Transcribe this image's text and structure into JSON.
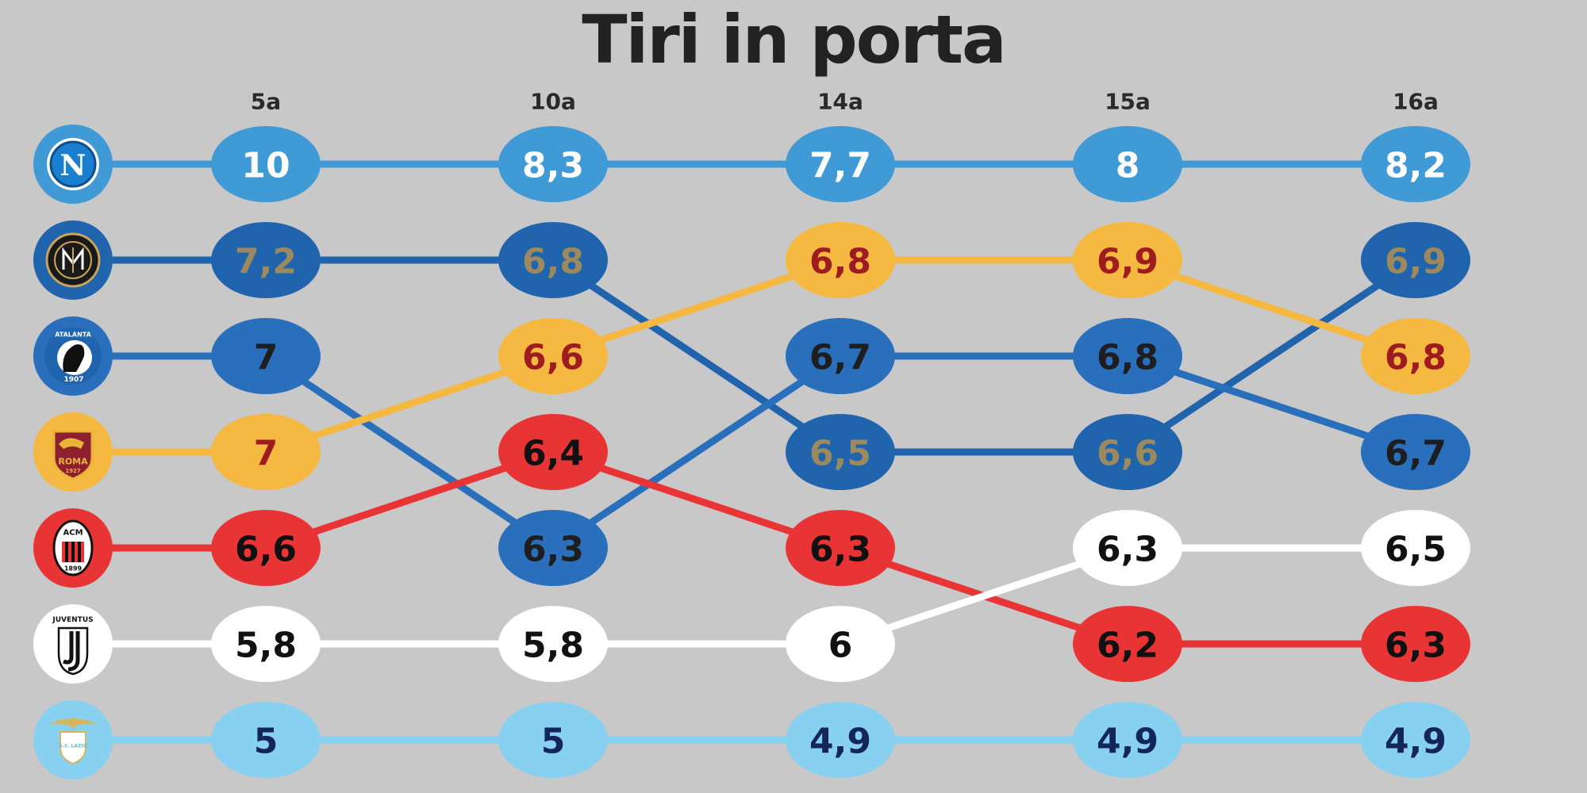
{
  "chart_data": {
    "type": "bump",
    "title": "Tiri in porta",
    "categories": [
      "5a",
      "10a",
      "14a",
      "15a",
      "16a"
    ],
    "series": [
      {
        "team_icon": "napoli-logo",
        "color": "#3f9ad6",
        "text_color": "#ffffff",
        "values": [
          10,
          8.3,
          7.7,
          8,
          8.2
        ],
        "labels": [
          "10",
          "8,3",
          "7,7",
          "8",
          "8,2"
        ],
        "ranks": [
          1,
          1,
          1,
          1,
          1
        ]
      },
      {
        "team_icon": "inter-logo",
        "color": "#1f64ad",
        "text_color": "#9c8a5e",
        "values": [
          7.2,
          6.8,
          6.5,
          6.6,
          6.9
        ],
        "labels": [
          "7,2",
          "6,8",
          "6,5",
          "6,6",
          "6,9"
        ],
        "ranks": [
          2,
          2,
          4,
          4,
          2
        ]
      },
      {
        "team_icon": "atalanta-logo",
        "color": "#2a6fbc",
        "text_color": "#1e1e1e",
        "values": [
          7,
          6.3,
          6.7,
          6.8,
          6.7
        ],
        "labels": [
          "7",
          "6,3",
          "6,7",
          "6,8",
          "6,7"
        ],
        "ranks": [
          3,
          5,
          3,
          3,
          4
        ]
      },
      {
        "team_icon": "roma-logo",
        "color": "#f5b841",
        "text_color": "#9e1b1f",
        "values": [
          7,
          6.6,
          6.8,
          6.9,
          6.8
        ],
        "labels": [
          "7",
          "6,6",
          "6,8",
          "6,9",
          "6,8"
        ],
        "ranks": [
          4,
          3,
          2,
          2,
          3
        ]
      },
      {
        "team_icon": "milan-logo",
        "color": "#e93435",
        "text_color": "#111111",
        "values": [
          6.6,
          6.4,
          6.3,
          6.2,
          6.3
        ],
        "labels": [
          "6,6",
          "6,4",
          "6,3",
          "6,2",
          "6,3"
        ],
        "ranks": [
          5,
          4,
          5,
          6,
          6
        ]
      },
      {
        "team_icon": "juventus-logo",
        "color": "#ffffff",
        "text_color": "#111111",
        "values": [
          5.8,
          5.8,
          6,
          6.3,
          6.5
        ],
        "labels": [
          "5,8",
          "5,8",
          "6",
          "6,3",
          "6,5"
        ],
        "ranks": [
          6,
          6,
          6,
          5,
          5
        ]
      },
      {
        "team_icon": "lazio-logo",
        "color": "#87d0ef",
        "text_color": "#14255c",
        "values": [
          5,
          5,
          4.9,
          4.9,
          4.9
        ],
        "labels": [
          "5",
          "5",
          "4,9",
          "4,9",
          "4,9"
        ],
        "ranks": [
          7,
          7,
          7,
          7,
          7
        ]
      }
    ]
  },
  "logo_text": {
    "napoli": "N",
    "atalanta_name": "ATALANTA",
    "atalanta_year": "1907",
    "roma_name": "ROMA",
    "roma_year": "1927",
    "milan_initials": "ACM",
    "milan_year": "1899",
    "juventus_name": "JUVENTUS",
    "lazio_motto": "S.S. LAZIO"
  }
}
